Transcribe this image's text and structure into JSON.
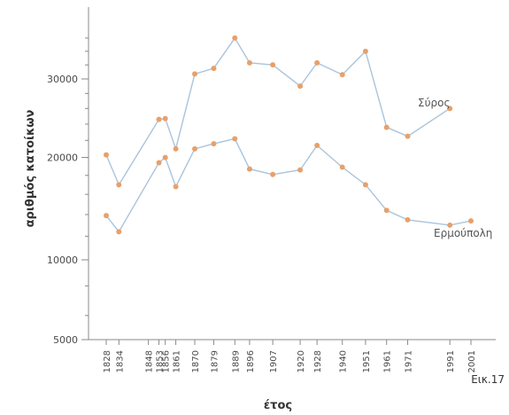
{
  "figure_label": "Εικ.17",
  "chart_data": {
    "type": "line",
    "title": "",
    "xlabel": "έτος",
    "ylabel": "αριθμός κατοίκων",
    "y_ticks": [
      5000,
      10000,
      20000,
      30000
    ],
    "x_ticks": [
      1828,
      1834,
      1848,
      1853,
      1856,
      1861,
      1870,
      1879,
      1889,
      1896,
      1907,
      1920,
      1928,
      1940,
      1951,
      1961,
      1971,
      1991,
      2001
    ],
    "grid": false,
    "series": [
      {
        "name": "Σύρος",
        "color": "#a9c4dd",
        "marker_color": "#e8a06a",
        "x": [
          1828,
          1834,
          1853,
          1856,
          1861,
          1870,
          1879,
          1889,
          1896,
          1907,
          1920,
          1928,
          1940,
          1951,
          1961,
          1971,
          1991
        ],
        "y": [
          20300,
          17000,
          24600,
          24700,
          21000,
          30700,
          31500,
          36000,
          32300,
          32000,
          29000,
          32300,
          30600,
          34000,
          23600,
          22500,
          26000
        ]
      },
      {
        "name": "Ερμούπολη",
        "color": "#a9c4dd",
        "marker_color": "#e8a06a",
        "x": [
          1828,
          1834,
          1853,
          1856,
          1861,
          1870,
          1879,
          1889,
          1896,
          1907,
          1920,
          1928,
          1940,
          1951,
          1961,
          1971,
          1991,
          2001
        ],
        "y": [
          13900,
          12400,
          19400,
          20000,
          16800,
          21000,
          21600,
          22200,
          18700,
          18100,
          18600,
          21400,
          18900,
          17000,
          14400,
          13500,
          13000,
          13400
        ]
      }
    ]
  }
}
